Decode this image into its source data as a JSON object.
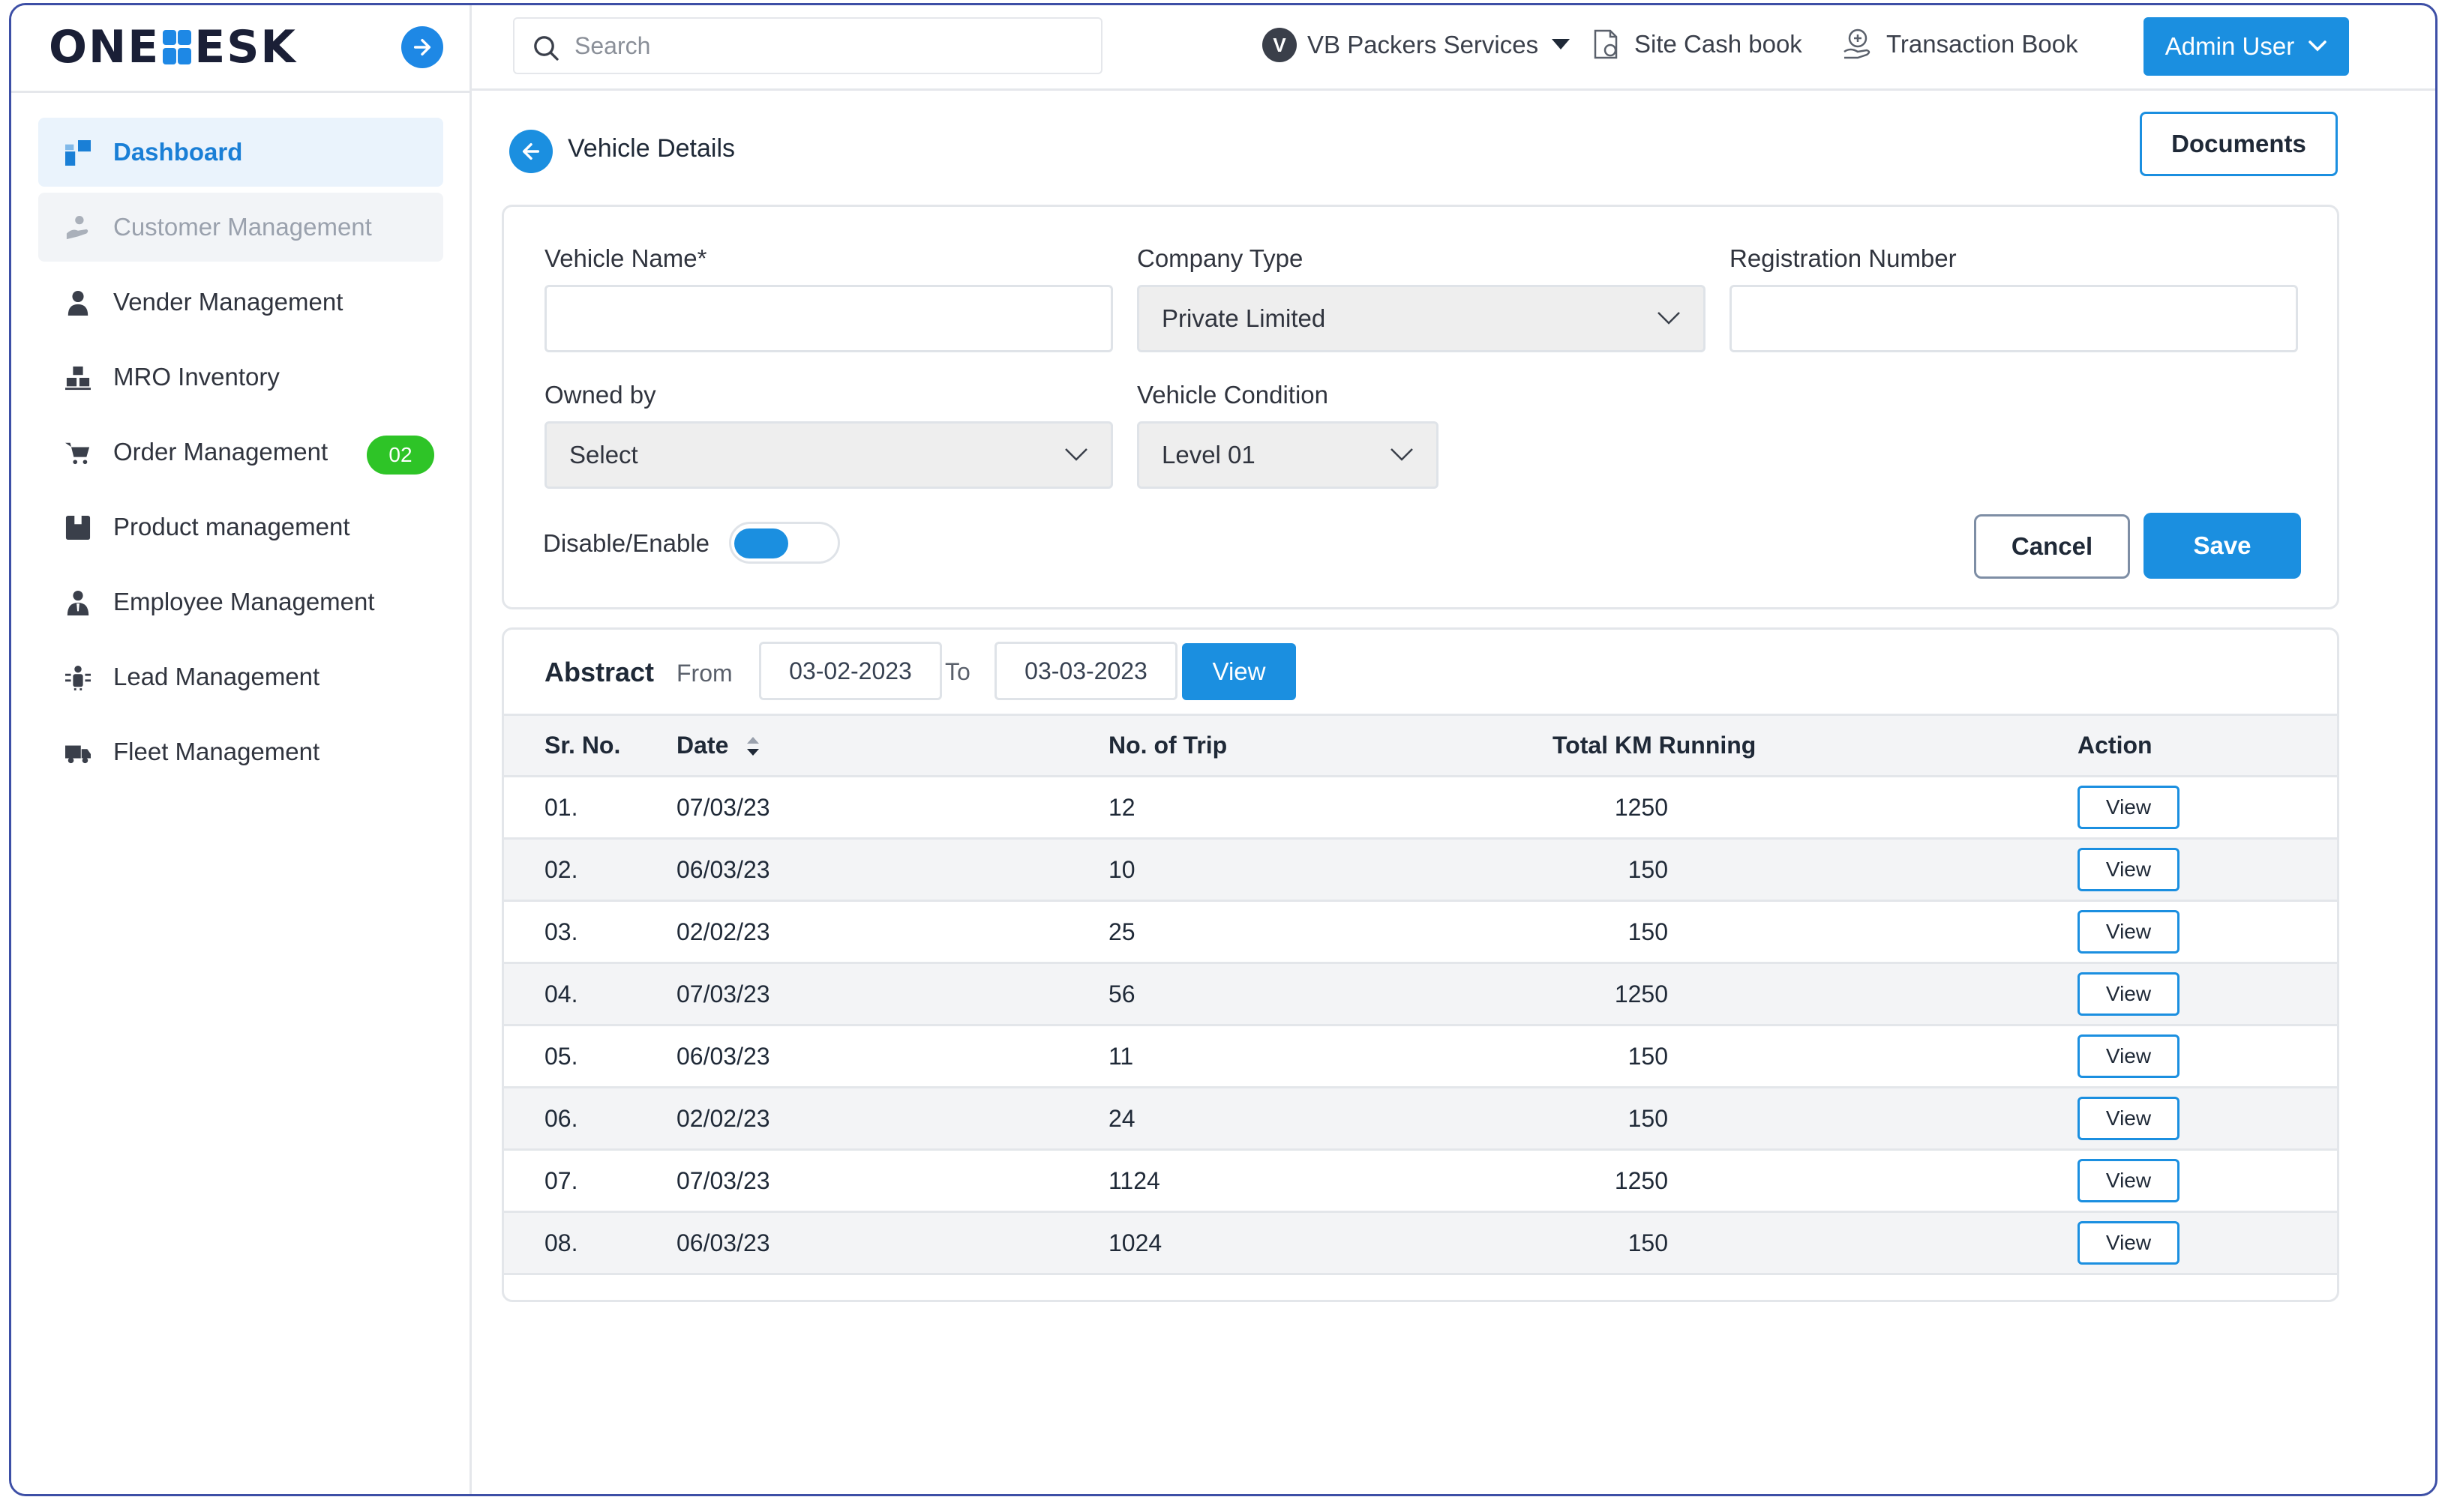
{
  "brand": {
    "logo_left": "ONE",
    "logo_right": "ESK"
  },
  "sidebar": {
    "items": [
      {
        "label": "Dashboard",
        "icon": "dashboard-icon"
      },
      {
        "label": "Customer Management",
        "icon": "customer-icon"
      },
      {
        "label": "Vender Management",
        "icon": "person-icon"
      },
      {
        "label": "MRO Inventory",
        "icon": "inventory-icon"
      },
      {
        "label": "Order Management",
        "icon": "cart-icon",
        "badge": "02"
      },
      {
        "label": "Product management",
        "icon": "product-icon"
      },
      {
        "label": "Employee Management",
        "icon": "employee-icon"
      },
      {
        "label": "Lead Management",
        "icon": "lead-icon"
      },
      {
        "label": "Fleet Management",
        "icon": "truck-icon"
      }
    ]
  },
  "header": {
    "search_placeholder": "Search",
    "company_initial": "V",
    "company": "VB Packers Services",
    "site_cash_book": "Site Cash book",
    "transaction_book": "Transaction Book",
    "admin": "Admin User"
  },
  "page": {
    "title": "Vehicle Details",
    "documents_label": "Documents"
  },
  "form": {
    "vehicle_name_label": "Vehicle Name*",
    "vehicle_name_value": "",
    "company_type_label": "Company Type",
    "company_type_value": "Private Limited",
    "registration_label": "Registration Number",
    "registration_value": "",
    "owned_by_label": "Owned by",
    "owned_by_value": "Select",
    "condition_label": "Vehicle Condition",
    "condition_value": "Level 01",
    "toggle_label": "Disable/Enable",
    "toggle_on": true,
    "cancel_label": "Cancel",
    "save_label": "Save"
  },
  "abstract": {
    "title": "Abstract",
    "from_label": "From",
    "from_value": "03-02-2023",
    "to_label": "To",
    "to_value": "03-03-2023",
    "view_label": "View",
    "columns": [
      "Sr. No.",
      "Date",
      "No. of Trip",
      "Total KM Running",
      "Action"
    ],
    "row_action": "View",
    "rows": [
      {
        "sr": "01.",
        "date": "07/03/23",
        "trips": "12",
        "km": "1250"
      },
      {
        "sr": "02.",
        "date": "06/03/23",
        "trips": "10",
        "km": "150"
      },
      {
        "sr": "03.",
        "date": "02/02/23",
        "trips": "25",
        "km": "150"
      },
      {
        "sr": "04.",
        "date": "07/03/23",
        "trips": "56",
        "km": "1250"
      },
      {
        "sr": "05.",
        "date": "06/03/23",
        "trips": "11",
        "km": "150"
      },
      {
        "sr": "06.",
        "date": "02/02/23",
        "trips": "24",
        "km": "150"
      },
      {
        "sr": "07.",
        "date": "07/03/23",
        "trips": "1124",
        "km": "1250"
      },
      {
        "sr": "08.",
        "date": "06/03/23",
        "trips": "1024",
        "km": "150"
      }
    ]
  },
  "colors": {
    "accent": "#1b8fe0",
    "badge": "#2ec427",
    "frame": "#3d4fa6"
  }
}
